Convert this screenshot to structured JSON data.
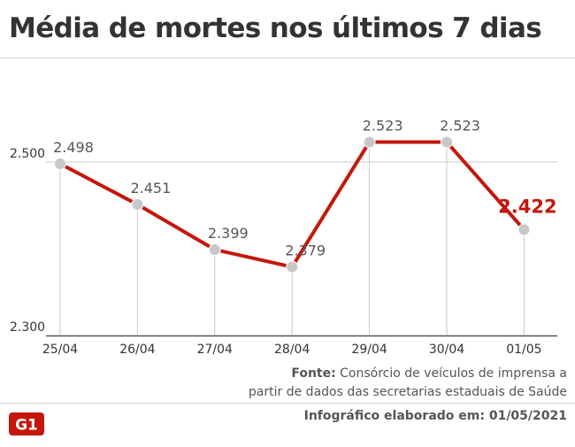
{
  "header": {
    "title": "Média de mortes nos últimos 7 dias"
  },
  "chart_data": {
    "type": "line",
    "categories": [
      "25/04",
      "26/04",
      "27/04",
      "28/04",
      "29/04",
      "30/04",
      "01/05"
    ],
    "values": [
      2498,
      2451,
      2399,
      2379,
      2523,
      2523,
      2422
    ],
    "value_labels": [
      "2.498",
      "2.451",
      "2.399",
      "2.379",
      "2.523",
      "2.523",
      "2.422"
    ],
    "y_ticks": [
      {
        "value": 2500,
        "label": "2.500"
      },
      {
        "value": 2300,
        "label": "2.300"
      }
    ],
    "ylim": [
      2300,
      2550
    ],
    "highlight_last": true,
    "colors": {
      "line": "#c4170c",
      "point": "#c8c8c8",
      "highlight_label": "#c4170c",
      "grid": "#c8c8c8"
    }
  },
  "footer": {
    "source_label": "Fonte:",
    "source_text_line1": "Consórcio de veículos de imprensa a",
    "source_text_line2": "partir de dados das secretarias estaduais de Saúde",
    "logo_text": "G1",
    "credit": "Infográfico elaborado em: 01/05/2021"
  }
}
